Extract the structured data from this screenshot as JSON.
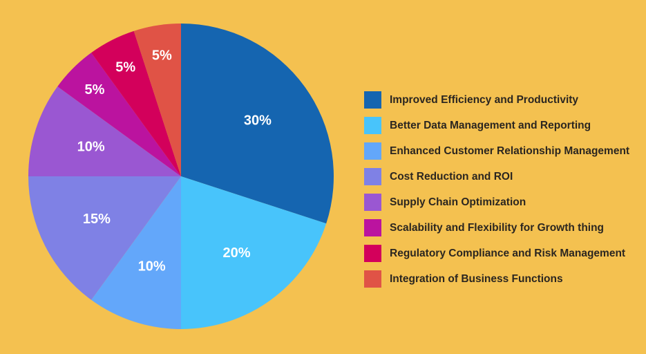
{
  "background_color": "#f4c150",
  "chart_data": {
    "type": "pie",
    "title": "",
    "legend_position": "right",
    "start_angle": "12 o'clock",
    "direction": "clockwise",
    "slices": [
      {
        "label": "Improved Efficiency and Productivity",
        "value": 30,
        "value_label": "30%",
        "color": "#1565b0"
      },
      {
        "label": "Better Data Management and Reporting",
        "value": 20,
        "value_label": "20%",
        "color": "#48c4fb"
      },
      {
        "label": "Enhanced Customer Relationship Management",
        "value": 10,
        "value_label": "10%",
        "color": "#63a7fa"
      },
      {
        "label": "Cost Reduction and ROI",
        "value": 15,
        "value_label": "15%",
        "color": "#7f81e5"
      },
      {
        "label": "Supply Chain Optimization",
        "value": 10,
        "value_label": "10%",
        "color": "#9a57d2"
      },
      {
        "label": "Scalability and Flexibility for Growth thing",
        "value": 5,
        "value_label": "5%",
        "color": "#bb139f"
      },
      {
        "label": "Regulatory Compliance and Risk Management",
        "value": 5,
        "value_label": "5%",
        "color": "#d3005b"
      },
      {
        "label": "Integration of Business Functions",
        "value": 5,
        "value_label": "5%",
        "color": "#e05346"
      }
    ]
  }
}
